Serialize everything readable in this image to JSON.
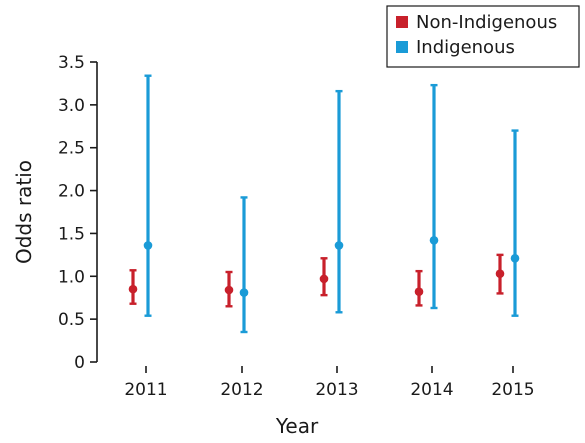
{
  "chart_data": {
    "type": "scatter",
    "subtype": "error-bar",
    "categories": [
      "2011",
      "2012",
      "2013",
      "2014",
      "2015"
    ],
    "xlabel": "Year",
    "ylabel": "Odds ratio",
    "ylim": [
      0,
      3.5
    ],
    "yticks": [
      "0",
      "0.5",
      "1.0",
      "1.5",
      "2.0",
      "2.5",
      "3.0",
      "3.5"
    ],
    "grid": false,
    "legend_position": "top-right",
    "series": [
      {
        "name": "Non-Indigenous",
        "color": "#c8202b",
        "values": [
          0.85,
          0.84,
          0.97,
          0.82,
          1.03
        ],
        "lower": [
          0.68,
          0.65,
          0.78,
          0.66,
          0.8
        ],
        "upper": [
          1.07,
          1.05,
          1.21,
          1.06,
          1.25
        ]
      },
      {
        "name": "Indigenous",
        "color": "#1a9bd7",
        "values": [
          1.36,
          0.81,
          1.36,
          1.42,
          1.21
        ],
        "lower": [
          0.54,
          0.35,
          0.58,
          0.63,
          0.54
        ],
        "upper": [
          3.34,
          1.92,
          3.16,
          3.23,
          2.7
        ]
      }
    ]
  }
}
